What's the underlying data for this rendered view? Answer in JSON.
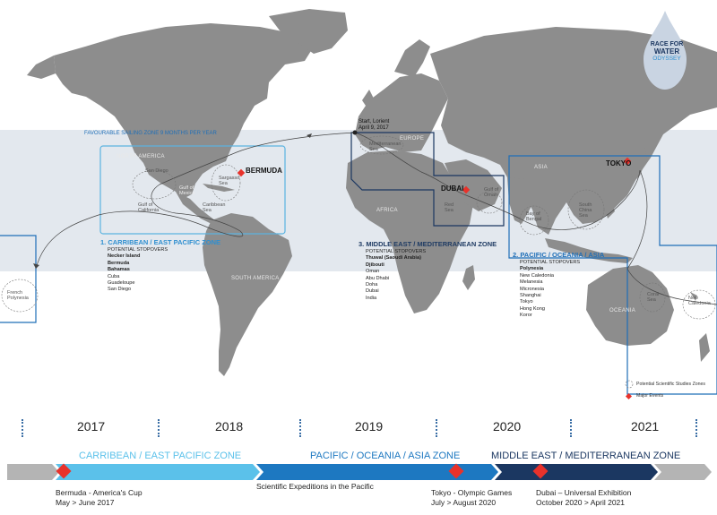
{
  "logo": {
    "line1": "RACE FOR",
    "line2": "WATER",
    "line3": "ODYSSEY"
  },
  "favourable_zone_label": "FAVOURABLE SAILING ZONE 9 MONTHS PER YEAR",
  "start": {
    "line1": "Start, Lorient",
    "line2": "April 9, 2017"
  },
  "continents": {
    "north_america": "NORTH AMERICA",
    "south_america": "SOUTH AMERICA",
    "africa": "AFRICA",
    "europe": "EUROPE",
    "asia": "ASIA",
    "oceania": "OCEANIA"
  },
  "seas": {
    "san_diego": "San Diego",
    "gulf_of_california": "Gulf of California",
    "gulf_of_mexico": "Gulf of Mexico",
    "caribbean_sea": "Caribbean Sea",
    "sargasso_sea": "Sargasso Sea",
    "mediterranean_sea": "Mediterranean Sea",
    "red_sea": "Red Sea",
    "gulf_of_oman": "Gulf of Oman",
    "bay_of_bengal": "Bay of Bengal",
    "south_china_sea": "South China Sea",
    "coral_sea": "Coral Sea",
    "new_caledonia": "New Caledonia",
    "french_polynesia": "French Polynesia"
  },
  "events": {
    "bermuda": "BERMUDA",
    "dubai": "DUBAI",
    "tokyo": "TOKYO"
  },
  "zones": [
    {
      "title": "1. CARRIBEAN / EAST PACIFIC ZONE",
      "header": "POTENTIAL STOPOVERS",
      "stops": [
        "Necker Island",
        "Bermuda",
        "Bahamas",
        "Cuba",
        "Guadeloupe",
        "San Diego"
      ]
    },
    {
      "title": "3. MIDDLE EAST / MEDITERRANEAN ZONE",
      "header": "POTENTIAL STOPOVERS",
      "stops": [
        "Thuwal (Saoudi Arabia)",
        "Djibouti",
        "Oman",
        "Abu Dhabi",
        "Doha",
        "Dubai",
        "India"
      ]
    },
    {
      "title": "2. PACIFIC / OCEANIA / ASIA",
      "header": "POTENTIAL STOPOVERS",
      "stops": [
        "Polynesia",
        "New Caledonia",
        "Melanesia",
        "Micronesia",
        "Shanghai",
        "Tokyo",
        "Hong Kong",
        "Koror"
      ]
    }
  ],
  "legend": {
    "zones": "Potential Scientific Studies Zones",
    "events": "Major Events"
  },
  "timeline": {
    "years": [
      "2017",
      "2018",
      "2019",
      "2020",
      "2021"
    ],
    "zone_labels": [
      "CARRIBEAN / EAST PACIFIC ZONE",
      "PACIFIC / OCEANIA / ASIA ZONE",
      "MIDDLE EAST / MEDITERRANEAN ZONE"
    ],
    "notes": {
      "bermuda": {
        "line1": "Bermuda - America's Cup",
        "line2": "May > June 2017"
      },
      "pacific": {
        "line1": "Scientific Expeditions in the Pacific"
      },
      "tokyo": {
        "line1": "Tokyo - Olympic Games",
        "line2": "July > August 2020"
      },
      "dubai": {
        "line1": "Dubai – Universal Exhibition",
        "line2": "October 2020 > April 2021"
      }
    }
  },
  "colors": {
    "land": "#8c8c8c",
    "band": "#e3e8ee",
    "light_blue": "#5bc1ea",
    "mid_blue": "#1d78c1",
    "dark_blue": "#1b3761",
    "grey_arrow": "#b4b4b4",
    "event_red": "#e8322b"
  }
}
